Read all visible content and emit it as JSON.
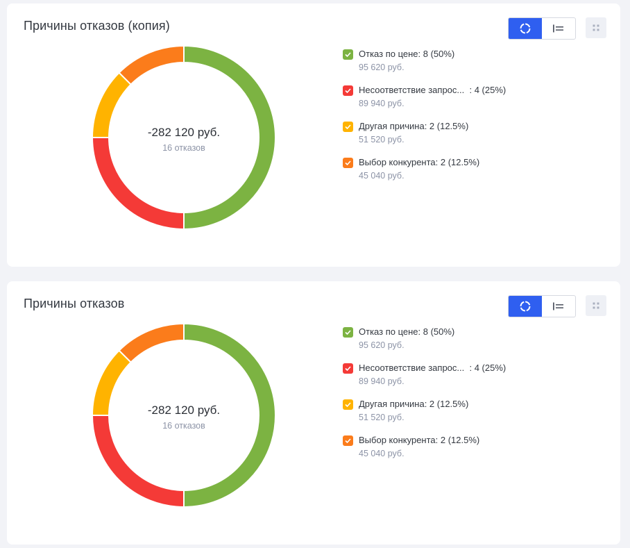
{
  "colors": {
    "green": "#7cb342",
    "red": "#f43a37",
    "yellow": "#ffb300",
    "orange": "#fb7c1b",
    "accent": "#2f5ff0"
  },
  "cards": [
    {
      "title": "Причины отказов (копия)",
      "center_total": "-282 120 руб.",
      "center_count": "16 отказов",
      "legend": [
        {
          "label": "Отказ по цене: 8 (50%)",
          "sum": "95 620 руб.",
          "color": "#7cb342"
        },
        {
          "label": "Несоответствие запрос...  : 4 (25%)",
          "sum": "89 940 руб.",
          "color": "#f43a37"
        },
        {
          "label": "Другая причина: 2 (12.5%)",
          "sum": "51 520 руб.",
          "color": "#ffb300"
        },
        {
          "label": "Выбор конкурента: 2 (12.5%)",
          "sum": "45 040 руб.",
          "color": "#fb7c1b"
        }
      ]
    },
    {
      "title": "Причины отказов",
      "center_total": "-282 120 руб.",
      "center_count": "16 отказов",
      "legend": [
        {
          "label": "Отказ по цене: 8 (50%)",
          "sum": "95 620 руб.",
          "color": "#7cb342"
        },
        {
          "label": "Несоответствие запрос...  : 4 (25%)",
          "sum": "89 940 руб.",
          "color": "#f43a37"
        },
        {
          "label": "Другая причина: 2 (12.5%)",
          "sum": "51 520 руб.",
          "color": "#ffb300"
        },
        {
          "label": "Выбор конкурента: 2 (12.5%)",
          "sum": "45 040 руб.",
          "color": "#fb7c1b"
        }
      ]
    }
  ],
  "chart_data": [
    {
      "type": "pie",
      "title": "Причины отказов (копия)",
      "categories": [
        "Отказ по цене",
        "Несоответствие запрос...",
        "Другая причина",
        "Выбор конкурента"
      ],
      "values": [
        8,
        4,
        2,
        2
      ],
      "percents": [
        50,
        25,
        12.5,
        12.5
      ],
      "sums": [
        "95 620 руб.",
        "89 940 руб.",
        "51 520 руб.",
        "45 040 руб."
      ],
      "colors": [
        "#7cb342",
        "#f43a37",
        "#ffb300",
        "#fb7c1b"
      ],
      "total": "-282 120 руб.",
      "count": "16 отказов",
      "legend": "right"
    },
    {
      "type": "pie",
      "title": "Причины отказов",
      "categories": [
        "Отказ по цене",
        "Несоответствие запрос...",
        "Другая причина",
        "Выбор конкурента"
      ],
      "values": [
        8,
        4,
        2,
        2
      ],
      "percents": [
        50,
        25,
        12.5,
        12.5
      ],
      "sums": [
        "95 620 руб.",
        "89 940 руб.",
        "51 520 руб.",
        "45 040 руб."
      ],
      "colors": [
        "#7cb342",
        "#f43a37",
        "#ffb300",
        "#fb7c1b"
      ],
      "total": "-282 120 руб.",
      "count": "16 отказов",
      "legend": "right"
    }
  ]
}
